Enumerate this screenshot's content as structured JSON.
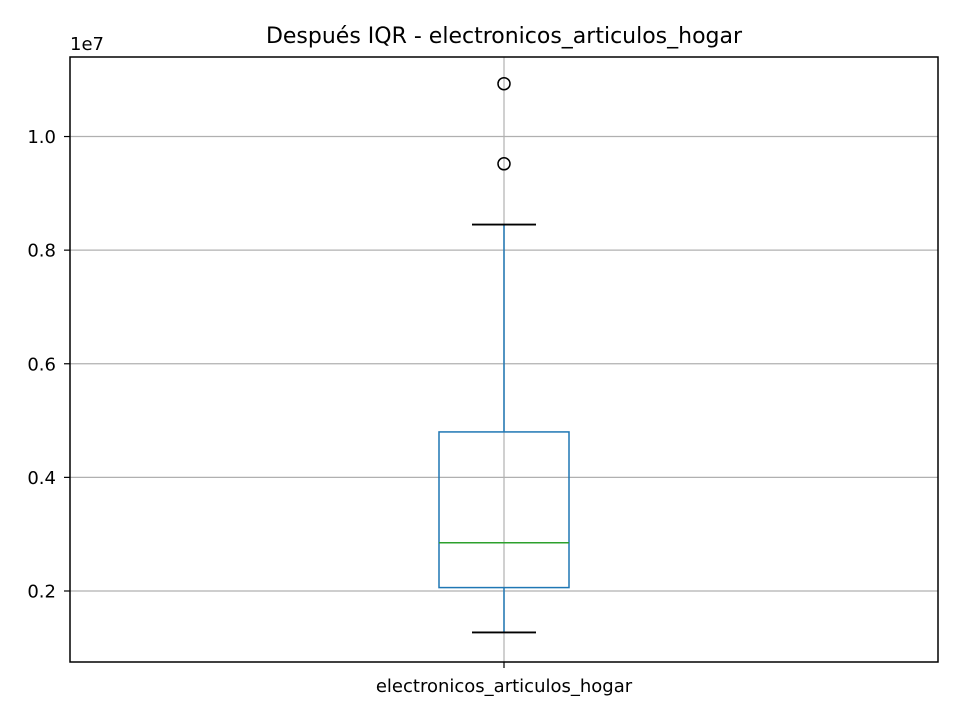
{
  "chart_data": {
    "type": "box",
    "title": "Después IQR - electronicos_articulos_hogar",
    "xlabel": "",
    "ylabel": "",
    "y_offset_label": "1e7",
    "y_scale_factor": 10000000,
    "ylim": [
      750000,
      11400000
    ],
    "yticks": [
      2000000,
      4000000,
      6000000,
      8000000,
      10000000
    ],
    "ytick_labels": [
      "0.2",
      "0.4",
      "0.6",
      "0.8",
      "1.0"
    ],
    "grid": true,
    "categories": [
      "electronicos_articulos_hogar"
    ],
    "boxes": [
      {
        "category": "electronicos_articulos_hogar",
        "whisker_low": 1270000,
        "q1": 2060000,
        "median": 2850000,
        "q3": 4800000,
        "whisker_high": 8450000,
        "outliers": [
          9520000,
          10930000
        ]
      }
    ],
    "colors": {
      "box": "#1f77b4",
      "median": "#2ca02c",
      "whisker_cap": "#000000",
      "outlier_edge": "#000000"
    }
  }
}
